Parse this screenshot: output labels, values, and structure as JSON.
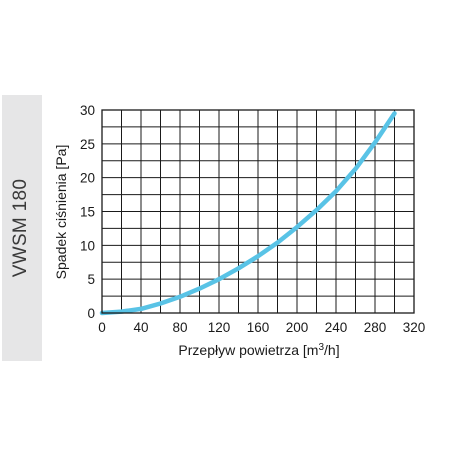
{
  "side_tab": {
    "label": "VWSM 180"
  },
  "chart_data": {
    "type": "line",
    "title": "",
    "xlabel_main": "Przepływ powietrza [m",
    "xlabel_sup": "3",
    "xlabel_end": "/h]",
    "ylabel": "Spadek ciśnienia [Pa]",
    "xlim": [
      0,
      320
    ],
    "ylim": [
      0,
      30
    ],
    "xticks": [
      0,
      40,
      80,
      120,
      160,
      200,
      240,
      280,
      320
    ],
    "yticks": [
      0,
      5,
      10,
      15,
      20,
      25,
      30
    ],
    "x_minor_step": 20,
    "y_minor_step": 2.5,
    "grid": true,
    "series": [
      {
        "color": "#59c3e6",
        "x": [
          0,
          20,
          40,
          60,
          80,
          100,
          120,
          140,
          160,
          180,
          200,
          220,
          240,
          260,
          280,
          300
        ],
        "y": [
          0,
          0.2,
          0.6,
          1.4,
          2.4,
          3.6,
          5.0,
          6.6,
          8.4,
          10.4,
          12.7,
          15.2,
          18.0,
          21.3,
          25.2,
          29.5
        ]
      }
    ]
  }
}
